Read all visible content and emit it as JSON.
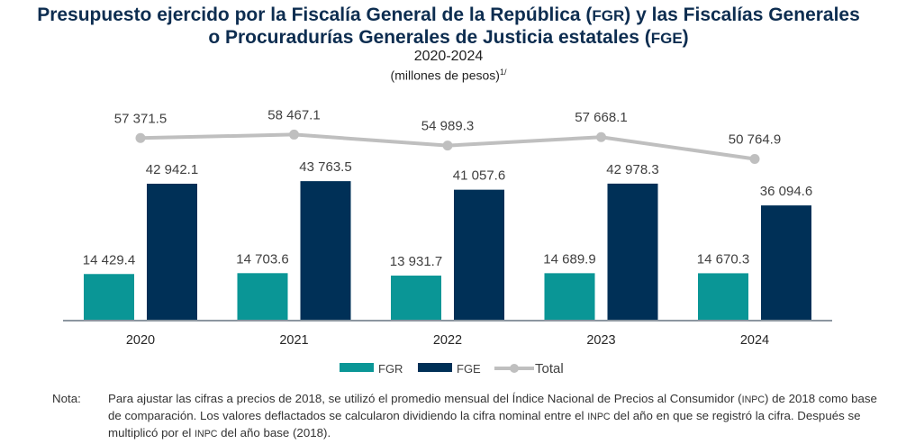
{
  "chart_data": {
    "type": "bar",
    "title_line1_parts": [
      "Presupuesto ejercido por la Fiscalía General de la República (",
      "FGR",
      ") y las Fiscalías Generales"
    ],
    "title_line2_parts": [
      "o Procuradurías Generales de Justicia estatales (",
      "FGE",
      ")"
    ],
    "period": "2020-2024",
    "units": "(millones de pesos)",
    "units_footnote": "1/",
    "categories": [
      "2020",
      "2021",
      "2022",
      "2023",
      "2024"
    ],
    "series": [
      {
        "name": "FGR",
        "kind": "bar",
        "color": "#0a9696",
        "values": [
          14429.4,
          14703.6,
          13931.7,
          14689.9,
          14670.3
        ],
        "labels": [
          "14 429.4",
          "14 703.6",
          "13 931.7",
          "14 689.9",
          "14 670.3"
        ]
      },
      {
        "name": "FGE",
        "kind": "bar",
        "color": "#003057",
        "values": [
          42942.1,
          43763.5,
          41057.6,
          42978.3,
          36094.6
        ],
        "labels": [
          "42 942.1",
          "43 763.5",
          "41 057.6",
          "42 978.3",
          "36 094.6"
        ]
      },
      {
        "name": "Total",
        "kind": "line",
        "color": "#bfbfbf",
        "values": [
          57371.5,
          58467.1,
          54989.3,
          57668.1,
          50764.9
        ],
        "labels": [
          "57 371.5",
          "58 467.1",
          "54 989.3",
          "57 668.1",
          "50 764.9"
        ]
      }
    ],
    "xlabel": "",
    "ylabel": "",
    "ylim": [
      0,
      58467.1
    ],
    "grid": false,
    "legend": {
      "placement": "bottom-center",
      "entries": [
        "FGR",
        "FGE",
        "Total"
      ]
    }
  },
  "note": {
    "label": "Nota:",
    "parts": [
      "Para ajustar las cifras a precios de 2018, se utilizó el promedio mensual del Índice Nacional de Precios al Consumidor (",
      "INPC",
      ") de 2018 como base de comparación. Los valores deflactados se calcularon dividiendo la cifra nominal entre el ",
      "INPC",
      " del año en que se registró la cifra. Después se multiplicó por el ",
      "INPC",
      " del año base (2018)."
    ]
  }
}
